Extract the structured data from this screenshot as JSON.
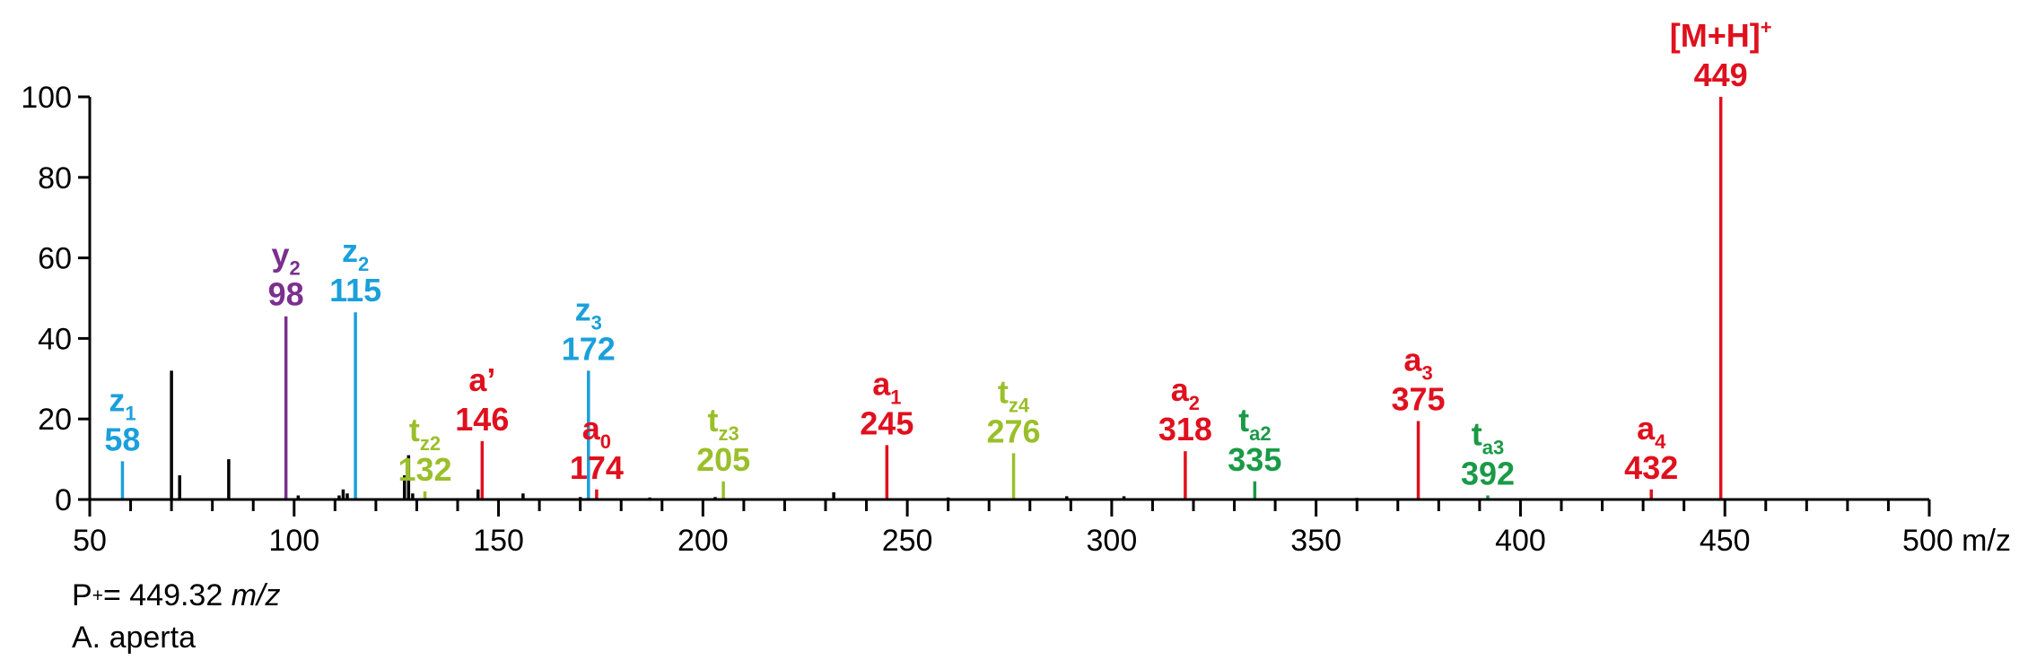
{
  "colors": {
    "axis": "#000000",
    "unlabeled": "#000000",
    "a": "#e0101e",
    "z": "#1aa0dc",
    "y": "#7b2f8f",
    "tz": "#9abf2a",
    "ta": "#1a9a46"
  },
  "chart_data": {
    "type": "bar",
    "xlabel": "m/z",
    "ylabel": "",
    "xlim": [
      50,
      500
    ],
    "ylim": [
      0,
      100
    ],
    "x_ticks": [
      50,
      100,
      150,
      200,
      250,
      300,
      350,
      400,
      450,
      500
    ],
    "x_tick_labels": [
      "50",
      "100",
      "150",
      "200",
      "250",
      "300",
      "350",
      "400",
      "450",
      "500 m/z"
    ],
    "y_ticks": [
      0,
      20,
      40,
      60,
      80,
      100
    ],
    "grid": false,
    "labeled_peaks": [
      {
        "mz": 58,
        "intensity": 9.5,
        "ion": "z",
        "sub": "1",
        "mass": "58",
        "color_key": "z"
      },
      {
        "mz": 98,
        "intensity": 45.5,
        "ion": "y",
        "sub": "2",
        "mass": "98",
        "color_key": "y"
      },
      {
        "mz": 115,
        "intensity": 46.5,
        "ion": "z",
        "sub": "2",
        "mass": "115",
        "color_key": "z"
      },
      {
        "mz": 132,
        "intensity": 2,
        "ion": "t",
        "sub": "z2",
        "mass": "132",
        "color_key": "tz"
      },
      {
        "mz": 146,
        "intensity": 14.5,
        "ion": "a’",
        "sub": "",
        "mass": "146",
        "color_key": "a"
      },
      {
        "mz": 172,
        "intensity": 32,
        "ion": "z",
        "sub": "3",
        "mass": "172",
        "color_key": "z"
      },
      {
        "mz": 174,
        "intensity": 2.5,
        "ion": "a",
        "sub": "0",
        "mass": "174",
        "color_key": "a"
      },
      {
        "mz": 205,
        "intensity": 4.5,
        "ion": "t",
        "sub": "z3",
        "mass": "205",
        "color_key": "tz"
      },
      {
        "mz": 245,
        "intensity": 13.5,
        "ion": "a",
        "sub": "1",
        "mass": "245",
        "color_key": "a"
      },
      {
        "mz": 276,
        "intensity": 11.5,
        "ion": "t",
        "sub": "z4",
        "mass": "276",
        "color_key": "tz"
      },
      {
        "mz": 318,
        "intensity": 12,
        "ion": "a",
        "sub": "2",
        "mass": "318",
        "color_key": "a"
      },
      {
        "mz": 335,
        "intensity": 4.5,
        "ion": "t",
        "sub": "a2",
        "mass": "335",
        "color_key": "ta"
      },
      {
        "mz": 375,
        "intensity": 19.5,
        "ion": "a",
        "sub": "3",
        "mass": "375",
        "color_key": "a"
      },
      {
        "mz": 392,
        "intensity": 1,
        "ion": "t",
        "sub": "a3",
        "mass": "392",
        "color_key": "ta"
      },
      {
        "mz": 432,
        "intensity": 2.5,
        "ion": "a",
        "sub": "4",
        "mass": "432",
        "color_key": "a"
      },
      {
        "mz": 449,
        "intensity": 100,
        "ion": "[M+H]",
        "sup": "+",
        "sub": "",
        "mass": "449",
        "color_key": "a"
      }
    ],
    "unlabeled_peaks": [
      {
        "mz": 70,
        "intensity": 32
      },
      {
        "mz": 72,
        "intensity": 6
      },
      {
        "mz": 84,
        "intensity": 10
      },
      {
        "mz": 101,
        "intensity": 1
      },
      {
        "mz": 111,
        "intensity": 1
      },
      {
        "mz": 112,
        "intensity": 2.5
      },
      {
        "mz": 113,
        "intensity": 1.5
      },
      {
        "mz": 127,
        "intensity": 6
      },
      {
        "mz": 128,
        "intensity": 11
      },
      {
        "mz": 129,
        "intensity": 1.5
      },
      {
        "mz": 145,
        "intensity": 2.5
      },
      {
        "mz": 156,
        "intensity": 1.5
      },
      {
        "mz": 170,
        "intensity": 0.6
      },
      {
        "mz": 187,
        "intensity": 0.5
      },
      {
        "mz": 203,
        "intensity": 0.6
      },
      {
        "mz": 232,
        "intensity": 1.8
      },
      {
        "mz": 260,
        "intensity": 0.5
      },
      {
        "mz": 289,
        "intensity": 0.8
      },
      {
        "mz": 303,
        "intensity": 0.8
      },
      {
        "mz": 360,
        "intensity": 0.4
      }
    ]
  },
  "footer": {
    "precursor_prefix": "P",
    "precursor_sup": "+",
    "precursor_value": "= 449.32 ",
    "precursor_unit": "m/z",
    "species": "A. aperta"
  }
}
